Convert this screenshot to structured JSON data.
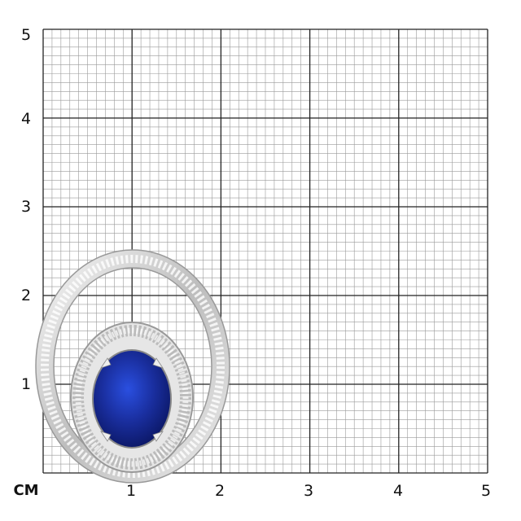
{
  "scale": {
    "unit_label": "CM",
    "x_labels": [
      "1",
      "2",
      "3",
      "4",
      "5"
    ],
    "y_labels": [
      "1",
      "2",
      "3",
      "4",
      "5"
    ],
    "range_cm": [
      0,
      5
    ],
    "minor_step_mm": 1
  },
  "colors": {
    "grid_minor": "#9a9a9a",
    "grid_major": "#222222",
    "metal": "#d8d8d8",
    "sapphire": "#1a2fa0"
  },
  "image": {
    "subject": "pendant-with-oval-sapphire-and-baguette-diamonds"
  }
}
